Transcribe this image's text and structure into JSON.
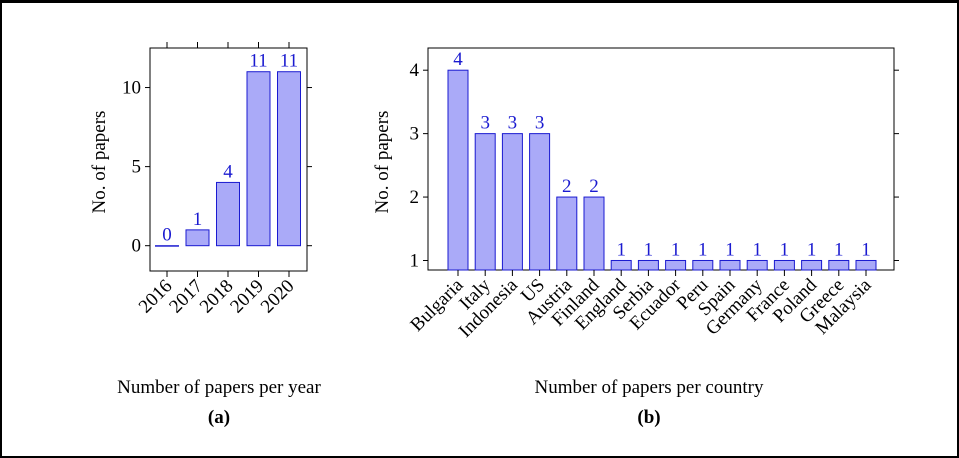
{
  "colors": {
    "bar_fill": "#aaaaf8",
    "bar_stroke": "#1a1ad0",
    "data_label": "#1a1ad0",
    "axis": "#000000"
  },
  "chart_data": [
    {
      "type": "bar",
      "id": "a",
      "caption": "Number of papers per year",
      "sub_label": "(a)",
      "ylabel": "No. of papers",
      "categories": [
        "2016",
        "2017",
        "2018",
        "2019",
        "2020"
      ],
      "values": [
        0,
        1,
        4,
        11,
        11
      ],
      "ylim": [
        -1.6,
        12.5
      ],
      "yticks": [
        "0",
        "5",
        "10"
      ],
      "ytick_values": [
        0,
        5,
        10
      ],
      "grid": false,
      "data_labels": true
    },
    {
      "type": "bar",
      "id": "b",
      "caption": "Number of papers per country",
      "sub_label": "(b)",
      "ylabel": "No. of papers",
      "categories": [
        "Bulgaria",
        "Italy",
        "Indonesia",
        "US",
        "Austria",
        "Finland",
        "England",
        "Serbia",
        "Ecuador",
        "Peru",
        "Spain",
        "Germany",
        "France",
        "Poland",
        "Greece",
        "Malaysia"
      ],
      "values": [
        4,
        3,
        3,
        3,
        2,
        2,
        1,
        1,
        1,
        1,
        1,
        1,
        1,
        1,
        1,
        1
      ],
      "ylim": [
        0.85,
        4.35
      ],
      "yticks": [
        "1",
        "2",
        "3",
        "4"
      ],
      "ytick_values": [
        1,
        2,
        3,
        4
      ],
      "grid": false,
      "data_labels": true
    }
  ]
}
